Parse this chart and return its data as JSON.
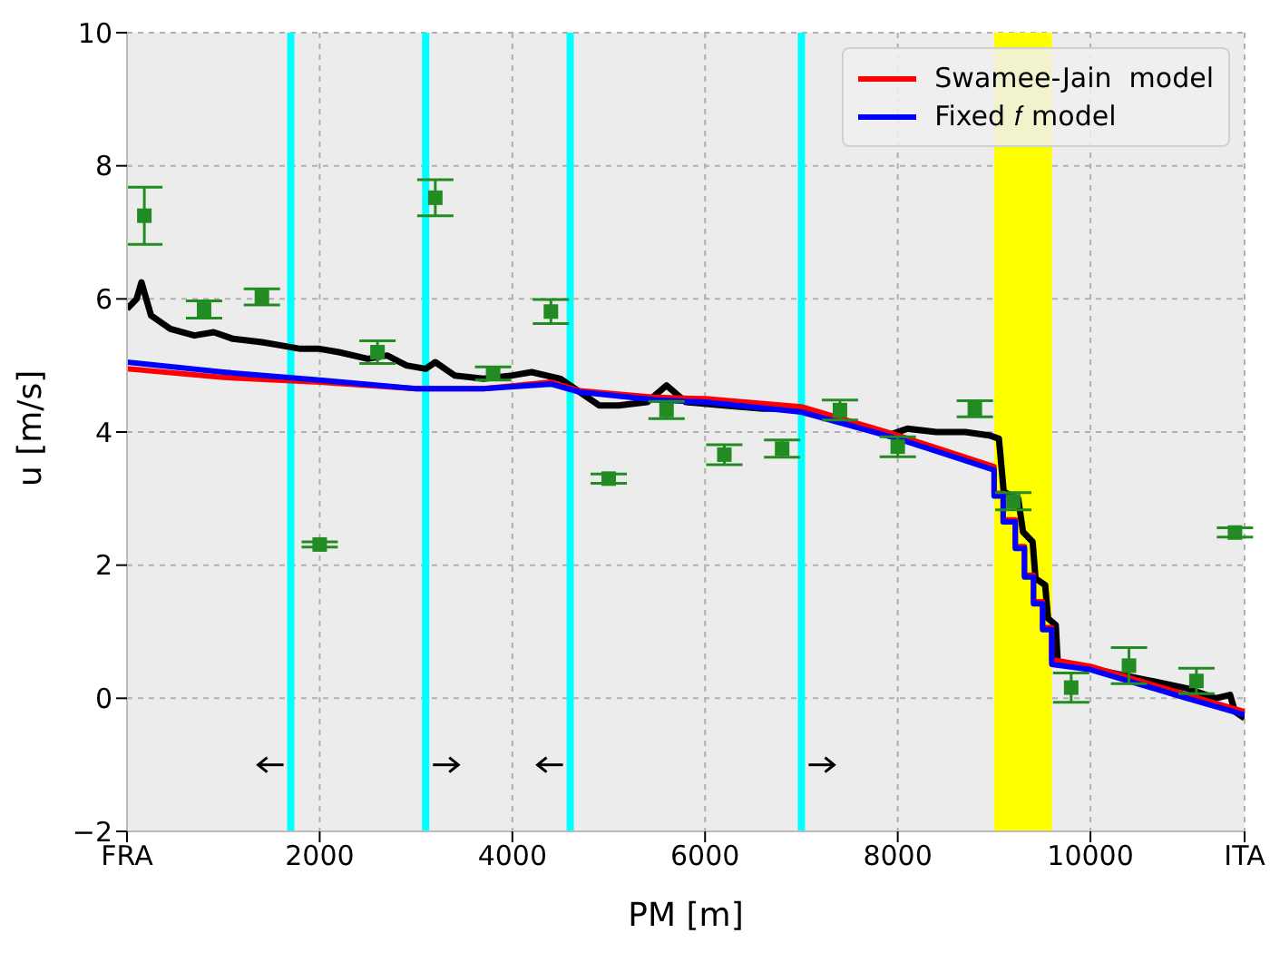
{
  "chart_data": {
    "type": "line",
    "xlabel": "PM [m]",
    "ylabel": "u [m/s]",
    "xlim": [
      0,
      11600
    ],
    "xticks": [
      {
        "value": 0,
        "label": "FRA"
      },
      2000,
      4000,
      6000,
      8000,
      10000,
      {
        "value": 11600,
        "label": "ITA"
      }
    ],
    "ylim": [
      -2,
      10
    ],
    "yticks": [
      {
        "value": -2,
        "label": "−2"
      },
      0,
      2,
      4,
      6,
      8,
      10
    ],
    "grid": true,
    "legend": "top right",
    "line_style": "solid",
    "ref_lines": [
      {
        "axis": "x",
        "value": 1700,
        "color": "#00ffff"
      },
      {
        "axis": "x",
        "value": 3100,
        "color": "#00ffff"
      },
      {
        "axis": "x",
        "value": 4600,
        "color": "#00ffff"
      },
      {
        "axis": "x",
        "value": 7000,
        "color": "#00ffff"
      }
    ],
    "bands": [
      {
        "axis": "x",
        "from": 9000,
        "to": 9600,
        "color": "#ffff00"
      }
    ],
    "series": [
      {
        "type": "line",
        "color": "#000000",
        "marker": "none",
        "x": [
          0,
          100,
          150,
          250,
          450,
          700,
          900,
          1100,
          1400,
          1600,
          1800,
          2000,
          2200,
          2500,
          2700,
          2900,
          3100,
          3200,
          3400,
          3700,
          4000,
          4200,
          4500,
          4700,
          4900,
          5100,
          5400,
          5600,
          5800,
          6200,
          6600,
          7000,
          7300,
          7600,
          7900,
          8100,
          8400,
          8700,
          8950,
          9050,
          9100,
          9250,
          9300,
          9400,
          9430,
          9530,
          9560,
          9640,
          9660,
          10000,
          10500,
          11000,
          11300,
          11450,
          11500,
          11600
        ],
        "values": [
          5.85,
          6.0,
          6.25,
          5.75,
          5.55,
          5.45,
          5.5,
          5.4,
          5.35,
          5.3,
          5.25,
          5.25,
          5.2,
          5.1,
          5.15,
          5.0,
          4.95,
          5.05,
          4.85,
          4.8,
          4.85,
          4.9,
          4.8,
          4.6,
          4.4,
          4.4,
          4.45,
          4.7,
          4.45,
          4.4,
          4.35,
          4.35,
          4.2,
          4.1,
          3.95,
          4.05,
          4.0,
          4.0,
          3.95,
          3.9,
          3.1,
          3.0,
          2.5,
          2.35,
          1.8,
          1.7,
          1.2,
          1.1,
          0.55,
          0.45,
          0.3,
          0.15,
          0.0,
          0.05,
          -0.2,
          -0.3
        ]
      },
      {
        "type": "line",
        "name": "Swamee-Jain  model",
        "color": "#ff0000",
        "marker": "none",
        "x": [
          0,
          1000,
          2000,
          3000,
          3700,
          4400,
          4700,
          5500,
          6000,
          7000,
          8000,
          9000,
          9000,
          9094,
          9094,
          9220,
          9220,
          9315,
          9315,
          9409,
          9409,
          9503,
          9503,
          9598,
          9598,
          10000,
          11000,
          11600
        ],
        "values": [
          4.95,
          4.82,
          4.75,
          4.65,
          4.65,
          4.75,
          4.62,
          4.52,
          4.5,
          4.38,
          3.95,
          3.48,
          3.08,
          3.08,
          2.68,
          2.68,
          2.28,
          2.28,
          1.85,
          1.85,
          1.45,
          1.45,
          1.06,
          1.06,
          0.58,
          0.48,
          0.05,
          -0.2
        ]
      },
      {
        "type": "line",
        "name": "Fixed 𝑓 model",
        "color": "#0000ff",
        "marker": "none",
        "x": [
          0,
          1000,
          2000,
          3000,
          3700,
          4400,
          4700,
          5500,
          6000,
          7000,
          8000,
          9000,
          9000,
          9094,
          9094,
          9220,
          9220,
          9315,
          9315,
          9409,
          9409,
          9503,
          9503,
          9598,
          9598,
          10000,
          11000,
          11600
        ],
        "values": [
          5.05,
          4.9,
          4.78,
          4.65,
          4.65,
          4.72,
          4.6,
          4.48,
          4.45,
          4.3,
          3.9,
          3.43,
          3.04,
          3.04,
          2.65,
          2.65,
          2.25,
          2.25,
          1.82,
          1.82,
          1.42,
          1.42,
          1.03,
          1.03,
          0.51,
          0.43,
          0.0,
          -0.25
        ]
      },
      {
        "type": "scatter",
        "color": "#228b22",
        "marker": "square",
        "x": [
          180,
          800,
          1400,
          2000,
          2600,
          3200,
          3800,
          4400,
          5000,
          5600,
          6200,
          6800,
          7400,
          8000,
          8800,
          9200,
          9800,
          10400,
          11100,
          11500
        ],
        "values": [
          7.25,
          5.84,
          6.03,
          2.31,
          5.2,
          7.52,
          4.88,
          5.81,
          3.3,
          4.33,
          3.66,
          3.75,
          4.33,
          3.78,
          4.35,
          2.96,
          0.16,
          0.49,
          0.26,
          2.49
        ],
        "errors": [
          0.43,
          0.13,
          0.12,
          0.04,
          0.17,
          0.27,
          0.1,
          0.18,
          0.07,
          0.13,
          0.15,
          0.13,
          0.15,
          0.15,
          0.12,
          0.13,
          0.22,
          0.27,
          0.19,
          0.07
        ]
      }
    ]
  }
}
